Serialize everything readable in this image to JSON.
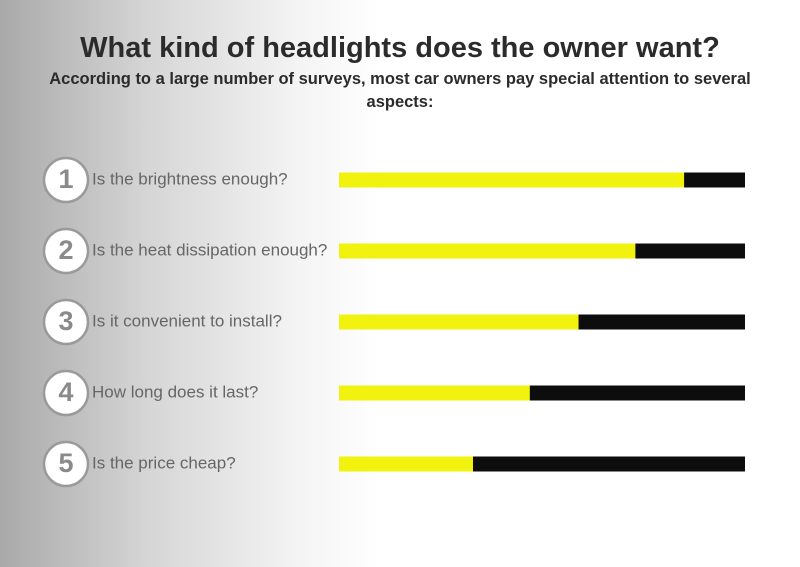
{
  "chart_data": {
    "type": "bar",
    "title": "What kind of headlights does the owner want?",
    "subtitle": "According to a large number of surveys, most car owners pay special attention to several aspects:",
    "numbers": [
      1,
      2,
      3,
      4,
      5
    ],
    "categories": [
      "Is the brightness enough?",
      "Is the heat dissipation enough?",
      "Is it convenient to install?",
      "How long does it last?",
      "Is the price cheap?"
    ],
    "values": [
      85,
      73,
      59,
      47,
      33
    ],
    "xlim": [
      0,
      100
    ],
    "color": "#f2f20f",
    "track_color": "#0d0d0d"
  }
}
